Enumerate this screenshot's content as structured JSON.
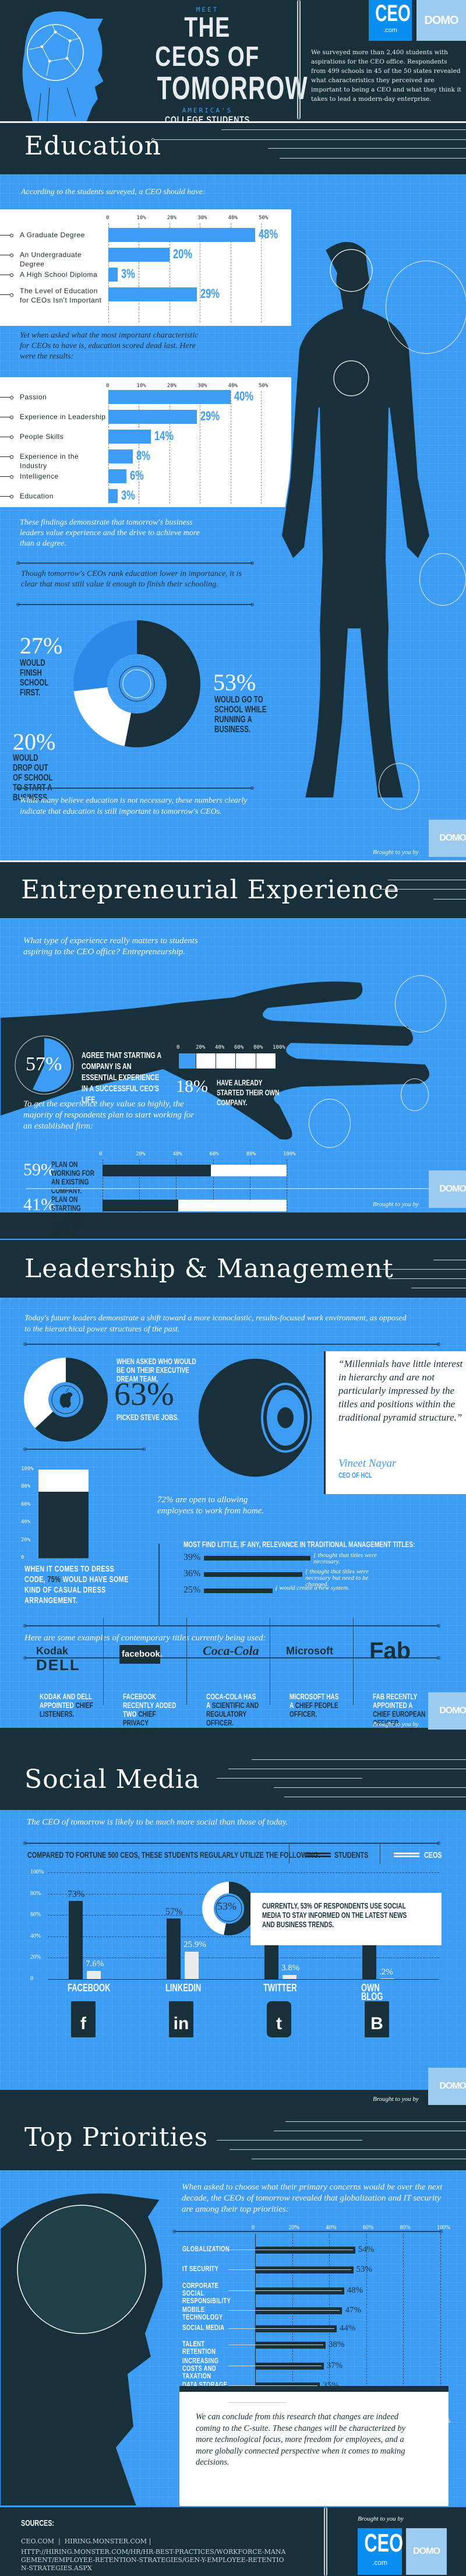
{
  "header": {
    "kicker": "MEET",
    "title_line1": "THE CEOS OF",
    "title_line2": "TOMORROW",
    "sub_kicker": "AMERICA'S",
    "subtitle": "COLLEGE STUDENTS",
    "intro": "We surveyed more than 2,400 students with aspirations for the CEO office. Respondents from 499 schools in 45 of the 50 states revealed what characteristics they perceived are important to being a CEO and what they think it takes to lead a modern-day enterprise.",
    "logo_ceo": "CEO",
    "logo_ceo_sub": ".com",
    "logo_domo": "DOMO"
  },
  "education": {
    "title": "Education",
    "intro1": "According to the students surveyed, a CEO should have:",
    "intro2": "Yet when asked what the most important characteristic for CEOs to have is, education scored dead last. Here were the results:",
    "finding1": "These findings demonstrate that tomorrow's business leaders value experience and the drive to achieve more than a degree.",
    "finding2": "Though tomorrow's CEOs rank education lower in importance, it is clear that most still value it enough to finish their schooling.",
    "pie": {
      "a_pct": "27%",
      "a_label": "WOULD FINISH SCHOOL FIRST.",
      "b_pct": "53%",
      "b_label": "WOULD GO TO SCHOOL WHILE RUNNING A BUSINESS.",
      "c_pct": "20%",
      "c_label": "WOULD DROP OUT OF SCHOOL TO START A BUSINESS."
    },
    "closing": "While many believe education is not necessary, these numbers clearly indicate that education is still important to tomorrow's CEOs.",
    "brought": "Brought to you by",
    "domo": "DOMO"
  },
  "entrepreneurial": {
    "title": "Entrepreneurial Experience",
    "intro": "What type of experience really matters to students aspiring to the CEO office? Entrepreneurship.",
    "circle_pct": "57%",
    "circle_label": "AGREE THAT STARTING A COMPANY IS AN ESSENTIAL EXPERIENCE IN A SUCCESSFUL CEO's LIFE.",
    "mini_ticks": [
      "0",
      "20%",
      "40%",
      "60%",
      "80%",
      "100%"
    ],
    "started_pct": "18%",
    "started_label": "HAVE ALREADY STARTED THEIR OWN COMPANY.",
    "plan_intro": "To get the experience they value so highly, the majority of respondents plan to start working for an established firm:",
    "ticks": [
      "0",
      "20%",
      "40%",
      "60%",
      "80%",
      "100%"
    ],
    "row1_pct": "59%",
    "row1_label": "PLAN ON WORKING FOR AN EXISTING COMPANY.",
    "row2_pct": "41%",
    "row2_label": "PLAN ON STARTING THEIR OWN COMPANY AFTER GRADUATING.",
    "brought": "Brought to you by",
    "domo": "DOMO"
  },
  "leadership": {
    "title": "Leadership & Management",
    "intro": "Today's future leaders demonstrate a shift toward a more iconoclastic, results-focused work environment, as opposed to the hierarchical power structures of the past.",
    "dream_label": "WHEN ASKED WHO WOULD BE ON THEIR EXECUTIVE DREAM TEAM,",
    "dream_pct": "63%",
    "dream_sub": "PICKED STEVE JOBS.",
    "quote": "“Millennials have little interest in hierarchy and are not particularly impressed by the titles and positions within the traditional pyramid structure.”",
    "quote_author": "Vineet Nayar",
    "quote_role": "CEO OF HCL",
    "dress_ticks": [
      "100%",
      "80%",
      "60%",
      "40%",
      "20%",
      "0"
    ],
    "dress_text_a": "WHEN IT COMES TO DRESS CODE, ",
    "dress_text_pct": "75%",
    "dress_text_b": " WOULD HAVE SOME KIND OF CASUAL DRESS ARRANGEMENT.",
    "home": "72% are open to allowing employees to work from home.",
    "titles_head": "MOST FIND LITTLE, IF ANY, RELEVANCE IN TRADITIONAL MANAGEMENT TITLES:",
    "titles": [
      {
        "pct": "39%",
        "text": "{ thought that titles were necessary."
      },
      {
        "pct": "36%",
        "text": "{ thought that titles were necessary but need to be changed."
      },
      {
        "pct": "25%",
        "text": "{ would create a new system."
      }
    ],
    "examples_intro": "Here are some examples of contemporary titles currently being used:",
    "companies": [
      {
        "logo": "Kodak",
        "logo2": "DELL",
        "text_a": "KODAK AND DELL APPOINTED ",
        "text_b": "CHIEF LISTENERS."
      },
      {
        "logo": "facebook.",
        "text_a": "FACEBOOK RECENTLY ADDED TWO ",
        "text_b": "CHIEF PRIVACY OFFICERS."
      },
      {
        "logo": "Coca-Cola",
        "text_a": "COCA-COLA HAS A ",
        "text_b": "SCIENTIFIC AND REGULATORY OFFICER."
      },
      {
        "logo": "Microsoft",
        "text_a": "MICROSOFT HAS A ",
        "text_b": "CHIEF PEOPLE OFFICER."
      },
      {
        "logo": "Fab",
        "text_a": "FAB RECENTLY APPOINTED A ",
        "text_b": "CHIEF EUROPEAN OFFICER."
      }
    ],
    "brought": "Brought to you by",
    "domo": "DOMO"
  },
  "social": {
    "title": "Social Media",
    "intro": "The CEO of tomorrow is likely to be much more social than those of today.",
    "compare_head": "COMPARED TO FORTUNE 500 CEOS, THESE STUDENTS REGULARLY UTILIZE THE FOLLOWING:",
    "legend_students": "STUDENTS",
    "legend_ceos": "CEOS",
    "y_ticks": [
      "100%",
      "80%",
      "60%",
      "40%",
      "20%",
      "0"
    ],
    "callout_pct": "53%",
    "callout_text": "CURRENTLY, 53% OF RESPONDENTS USE SOCIAL MEDIA TO STAY INFORMED ON THE LATEST NEWS AND BUSINESS TRENDS.",
    "platforms": [
      {
        "name": "FACEBOOK",
        "icon": "f",
        "students": "73%",
        "ceos": "7.6%"
      },
      {
        "name": "LINKEDIN",
        "icon": "in",
        "students": "57%",
        "ceos": "25.9%"
      },
      {
        "name": "TWITTER",
        "icon": "t",
        "students": "55%",
        "ceos": "3.8%"
      },
      {
        "name": "OWN BLOG",
        "icon": "B",
        "students": "50%",
        "ceos": ".2%"
      }
    ],
    "brought": "Brought to you by",
    "domo": "DOMO"
  },
  "priorities": {
    "title": "Top Priorities",
    "intro": "When asked to choose what their primary concerns would be over the next decade, the CEOs of tomorrow revealed that globalization and IT security are among their top priorities:",
    "ticks": [
      "0",
      "20%",
      "40%",
      "60%",
      "80%",
      "100%"
    ],
    "items": [
      {
        "label": "GLOBALIZATION",
        "pct": "54%"
      },
      {
        "label": "IT SECURITY",
        "pct": "53%"
      },
      {
        "label": "CORPORATE SOCIAL RESPONSIBILITY",
        "pct": "48%"
      },
      {
        "label": "MOBILE TECHNOLOGY",
        "pct": "47%"
      },
      {
        "label": "SOCIAL MEDIA",
        "pct": "44%"
      },
      {
        "label": "TALENT RETENTION",
        "pct": "38%"
      },
      {
        "label": "INCREASING COSTS AND TAXATION",
        "pct": "37%"
      },
      {
        "label": "DATA STORAGE",
        "pct": "35%"
      },
      {
        "label": "THE CLOUD",
        "pct": "18%"
      }
    ],
    "conclusion": "We can conclude from this research that changes are indeed coming to the C-suite. These changes will be characterized by more technological focus, more freedom for employees, and a more globally connected perspective when it comes to making decisions."
  },
  "footer": {
    "sources_head": "SOURCES:",
    "sources_line1": "CEO.COM  |  HIRING.MONSTER.COM |",
    "sources_line2": "HTTP://HIRING.MONSTER.COM/HR/HR-BEST-PRACTICES/WORKFORCE-MANAGEMENT/EMPLOYEE-RETENTION-STRATEGIES/GEN-Y-EMPLOYEE-RETENTION-STRATEGIES.ASPX",
    "brought": "Brought to you by",
    "logo_ceo": "CEO",
    "logo_ceo_sub": ".com",
    "logo_domo": "DOMO"
  },
  "chart_data": [
    {
      "type": "bar",
      "title": "According to the students surveyed, a CEO should have:",
      "categories": [
        "A Graduate Degree",
        "An Undergraduate Degree",
        "A High School Diploma",
        "The Level of Education for CEOs Isn't Important"
      ],
      "values": [
        48,
        20,
        3,
        29
      ],
      "xlabel": "",
      "ylabel": "",
      "ylim": [
        0,
        50
      ],
      "ticks": [
        "0",
        "10%",
        "20%",
        "30%",
        "40%",
        "50%"
      ],
      "orientation": "horizontal",
      "grid": true
    },
    {
      "type": "bar",
      "title": "Most important characteristic for CEOs",
      "categories": [
        "Passion",
        "Experience in Leadership",
        "People Skills",
        "Experience in the Industry",
        "Intelligence",
        "Education"
      ],
      "values": [
        40,
        29,
        14,
        8,
        6,
        3
      ],
      "ylim": [
        0,
        50
      ],
      "ticks": [
        "0",
        "10%",
        "20%",
        "30%",
        "40%",
        "50%"
      ],
      "orientation": "horizontal",
      "grid": true
    },
    {
      "type": "pie",
      "title": "Education plans",
      "categories": [
        "Would finish school first",
        "Would go to school while running a business",
        "Would drop out of school to start a business"
      ],
      "values": [
        27,
        53,
        20
      ]
    },
    {
      "type": "pie",
      "title": "Agree starting a company is essential",
      "categories": [
        "Agree",
        "Other"
      ],
      "values": [
        57,
        43
      ]
    },
    {
      "type": "bar",
      "title": "Have already started their own company",
      "categories": [
        "Started"
      ],
      "values": [
        18
      ],
      "ylim": [
        0,
        100
      ],
      "ticks": [
        "0",
        "20%",
        "40%",
        "60%",
        "80%",
        "100%"
      ]
    },
    {
      "type": "bar",
      "title": "Plans after graduating",
      "categories": [
        "Plan on working for an existing company",
        "Plan on starting their own company after graduating"
      ],
      "values": [
        59,
        41
      ],
      "ylim": [
        0,
        100
      ],
      "ticks": [
        "0",
        "20%",
        "40%",
        "60%",
        "80%",
        "100%"
      ],
      "orientation": "horizontal"
    },
    {
      "type": "pie",
      "title": "Executive dream team",
      "categories": [
        "Picked Steve Jobs",
        "Other"
      ],
      "values": [
        63,
        37
      ]
    },
    {
      "type": "bar",
      "title": "Dress code",
      "categories": [
        "Casual dress arrangement"
      ],
      "values": [
        75
      ],
      "ylim": [
        0,
        100
      ],
      "ticks": [
        "0",
        "20%",
        "40%",
        "60%",
        "80%",
        "100%"
      ]
    },
    {
      "type": "bar",
      "title": "Most find little, if any, relevance in traditional management titles",
      "categories": [
        "Thought titles were necessary",
        "Thought titles necessary but need to be changed",
        "Would create a new system"
      ],
      "values": [
        39,
        36,
        25
      ],
      "orientation": "horizontal"
    },
    {
      "type": "bar",
      "title": "Compared to Fortune 500 CEOs, these students regularly utilize the following",
      "categories": [
        "Facebook",
        "LinkedIn",
        "Twitter",
        "Own Blog"
      ],
      "series": [
        {
          "name": "Students",
          "values": [
            73,
            57,
            55,
            50
          ]
        },
        {
          "name": "CEOs",
          "values": [
            7.6,
            25.9,
            3.8,
            0.2
          ]
        }
      ],
      "ylim": [
        0,
        100
      ],
      "ticks": [
        "0",
        "20%",
        "40%",
        "60%",
        "80%",
        "100%"
      ],
      "grid": true,
      "legend_position": "top-right"
    },
    {
      "type": "pie",
      "title": "Use social media to stay informed",
      "categories": [
        "Use social media",
        "Other"
      ],
      "values": [
        53,
        47
      ]
    },
    {
      "type": "bar",
      "title": "Top priorities over the next decade",
      "categories": [
        "Globalization",
        "IT Security",
        "Corporate Social Responsibility",
        "Mobile Technology",
        "Social Media",
        "Talent Retention",
        "Increasing Costs and Taxation",
        "Data Storage",
        "The Cloud"
      ],
      "values": [
        54,
        53,
        48,
        47,
        44,
        38,
        37,
        35,
        18
      ],
      "ylim": [
        0,
        100
      ],
      "ticks": [
        "0",
        "20%",
        "40%",
        "60%",
        "80%",
        "100%"
      ],
      "orientation": "horizontal",
      "grid": true
    }
  ]
}
